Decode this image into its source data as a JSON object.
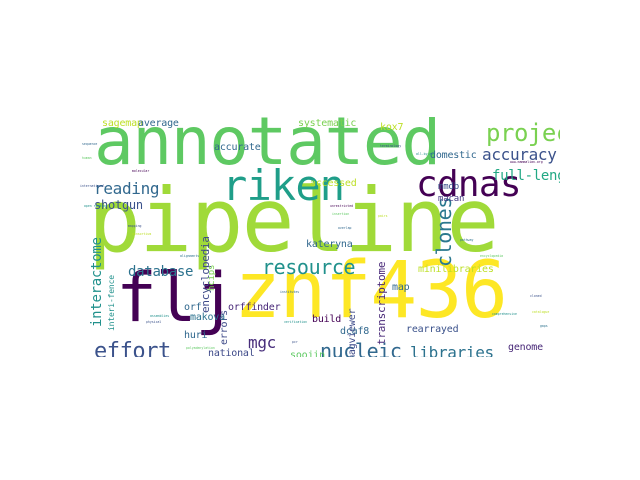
{
  "palette": {
    "purple": "#440154",
    "indigo": "#3b528b",
    "teal": "#21918c",
    "green": "#5ec962",
    "lime": "#a0da39",
    "yellow": "#fde725"
  },
  "words": [
    {
      "text": "pipeline",
      "color": "#a0da39"
    },
    {
      "text": "annotated",
      "color": "#5ec962"
    },
    {
      "text": "znf436",
      "color": "#fde725"
    },
    {
      "text": "flj",
      "color": "#440154"
    },
    {
      "text": "cdnas",
      "color": "#440154"
    },
    {
      "text": "riken",
      "color": "#1f9e89"
    },
    {
      "text": "project",
      "color": "#7ad151"
    },
    {
      "text": "resource",
      "color": "#21918c"
    },
    {
      "text": "nucleic",
      "color": "#31688e"
    },
    {
      "text": "effort",
      "color": "#3b528b"
    },
    {
      "text": "mgc",
      "color": "#472d7b"
    },
    {
      "text": "libraries",
      "color": "#2c728e"
    },
    {
      "text": "accuracy",
      "color": "#3b528b"
    },
    {
      "text": "reading",
      "color": "#31688e"
    },
    {
      "text": "database",
      "color": "#2c728e"
    },
    {
      "text": "clones",
      "color": "#2a788e"
    },
    {
      "text": "searchable",
      "color": "#35b779"
    },
    {
      "text": "interactome",
      "color": "#21918c"
    },
    {
      "text": "full-length",
      "color": "#22a884"
    },
    {
      "text": "shotgun",
      "color": "#3b528b"
    },
    {
      "text": "encyclopedia",
      "color": "#3e4a89"
    },
    {
      "text": "transcriptome",
      "color": "#482878"
    },
    {
      "text": "accurate",
      "color": "#31688e"
    },
    {
      "text": "systematic",
      "color": "#7ad151"
    },
    {
      "text": "domestic",
      "color": "#31688e"
    },
    {
      "text": "sagemap",
      "color": "#bddf26"
    },
    {
      "text": "average",
      "color": "#31688e"
    },
    {
      "text": "kox7",
      "color": "#bddf26"
    },
    {
      "text": "accessed",
      "color": "#bddf26"
    },
    {
      "text": "mmdb",
      "color": "#3b528b"
    },
    {
      "text": "macan",
      "color": "#443983"
    },
    {
      "text": "magviewer",
      "color": "#3e4a89"
    },
    {
      "text": "minilibraries",
      "color": "#bddf26"
    },
    {
      "text": "map",
      "color": "#31688e"
    },
    {
      "text": "orffinder",
      "color": "#482878"
    },
    {
      "text": "build",
      "color": "#440154"
    },
    {
      "text": "kateryna",
      "color": "#31688e"
    },
    {
      "text": "errors",
      "color": "#3e4a89"
    },
    {
      "text": "makova",
      "color": "#2c728e"
    },
    {
      "text": "national",
      "color": "#3e4a89"
    },
    {
      "text": "soojin",
      "color": "#5ec962"
    },
    {
      "text": "genome",
      "color": "#482878"
    },
    {
      "text": "rearrayed",
      "color": "#3b528b"
    },
    {
      "text": "dcaf8",
      "color": "#31688e"
    },
    {
      "text": "huri",
      "color": "#31688e"
    },
    {
      "text": "orf",
      "color": "#31688e"
    },
    {
      "text": "hcips",
      "color": "#7ad151"
    },
    {
      "text": "interi-fence",
      "color": "#21918c"
    }
  ]
}
